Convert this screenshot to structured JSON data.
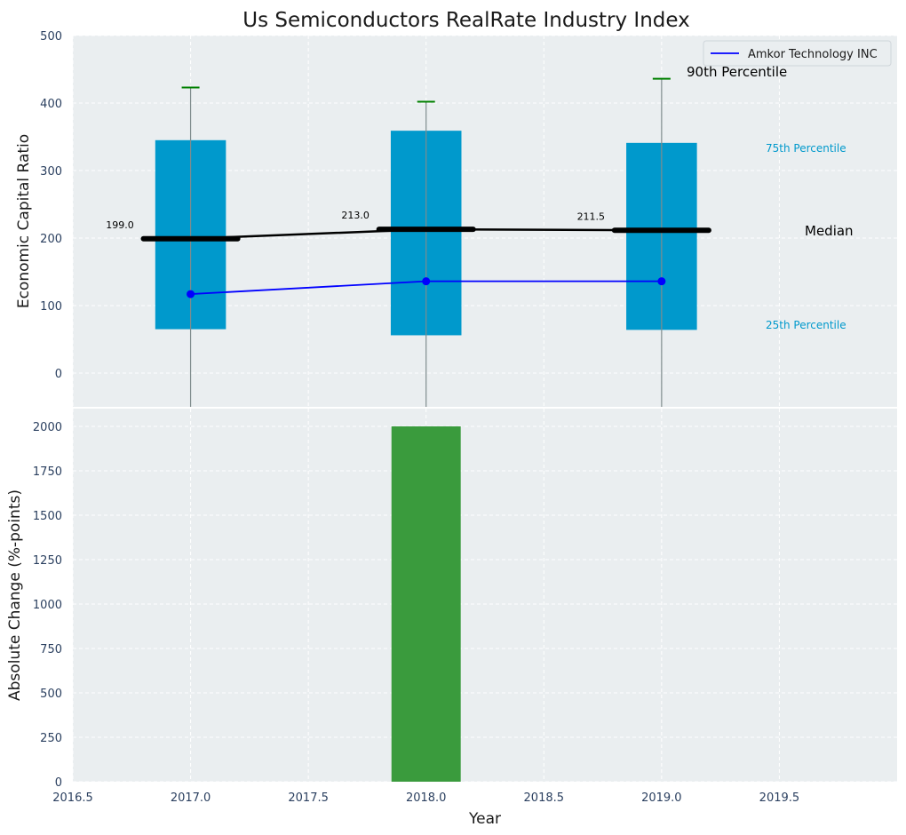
{
  "chart_data": [
    {
      "type": "box",
      "title": "Us Semiconductors RealRate Industry Index",
      "ylabel": "Economic Capital Ratio",
      "ylim": [
        -50,
        500
      ],
      "yticks": [
        0,
        100,
        200,
        300,
        400,
        500
      ],
      "xlim": [
        2016.5,
        2020.0
      ],
      "boxes": [
        {
          "x": 2017,
          "p25": 65,
          "p75": 345,
          "median": 199.0,
          "p90": 423,
          "median_label": "199.0"
        },
        {
          "x": 2018,
          "p25": 56,
          "p75": 359,
          "median": 213.0,
          "p90": 402,
          "median_label": "213.0"
        },
        {
          "x": 2019,
          "p25": 64,
          "p75": 341,
          "median": 211.5,
          "p90": 436,
          "median_label": "211.5"
        }
      ],
      "series": [
        {
          "name": "Amkor Technology INC",
          "x": [
            2017,
            2018,
            2019
          ],
          "values": [
            117,
            136,
            136
          ],
          "color": "#0000ff"
        }
      ],
      "annotations": {
        "p90": "90th Percentile",
        "p75": "75th Percentile",
        "median": "Median",
        "p25": "25th Percentile"
      },
      "legend": {
        "position": "top-right"
      },
      "colors": {
        "box": "#0099cc",
        "median": "#000000",
        "whisker_cap": "#008000",
        "background": "#eaeef0"
      },
      "grid": true
    },
    {
      "type": "bar",
      "xlabel": "Year",
      "ylabel": "Absolute Change (%-points)",
      "ylim": [
        0,
        2100
      ],
      "yticks": [
        0,
        250,
        500,
        750,
        1000,
        1250,
        1500,
        1750,
        2000
      ],
      "xlim": [
        2016.5,
        2020.0
      ],
      "xticks": [
        2016.5,
        2017.0,
        2017.5,
        2018.0,
        2018.5,
        2019.0,
        2019.5
      ],
      "xtick_labels": [
        "2016.5",
        "2017.0",
        "2017.5",
        "2018.0",
        "2018.5",
        "2019.0",
        "2019.5"
      ],
      "x": [
        2018
      ],
      "values": [
        2000
      ],
      "color": "#3a9b3d",
      "grid": true
    }
  ]
}
